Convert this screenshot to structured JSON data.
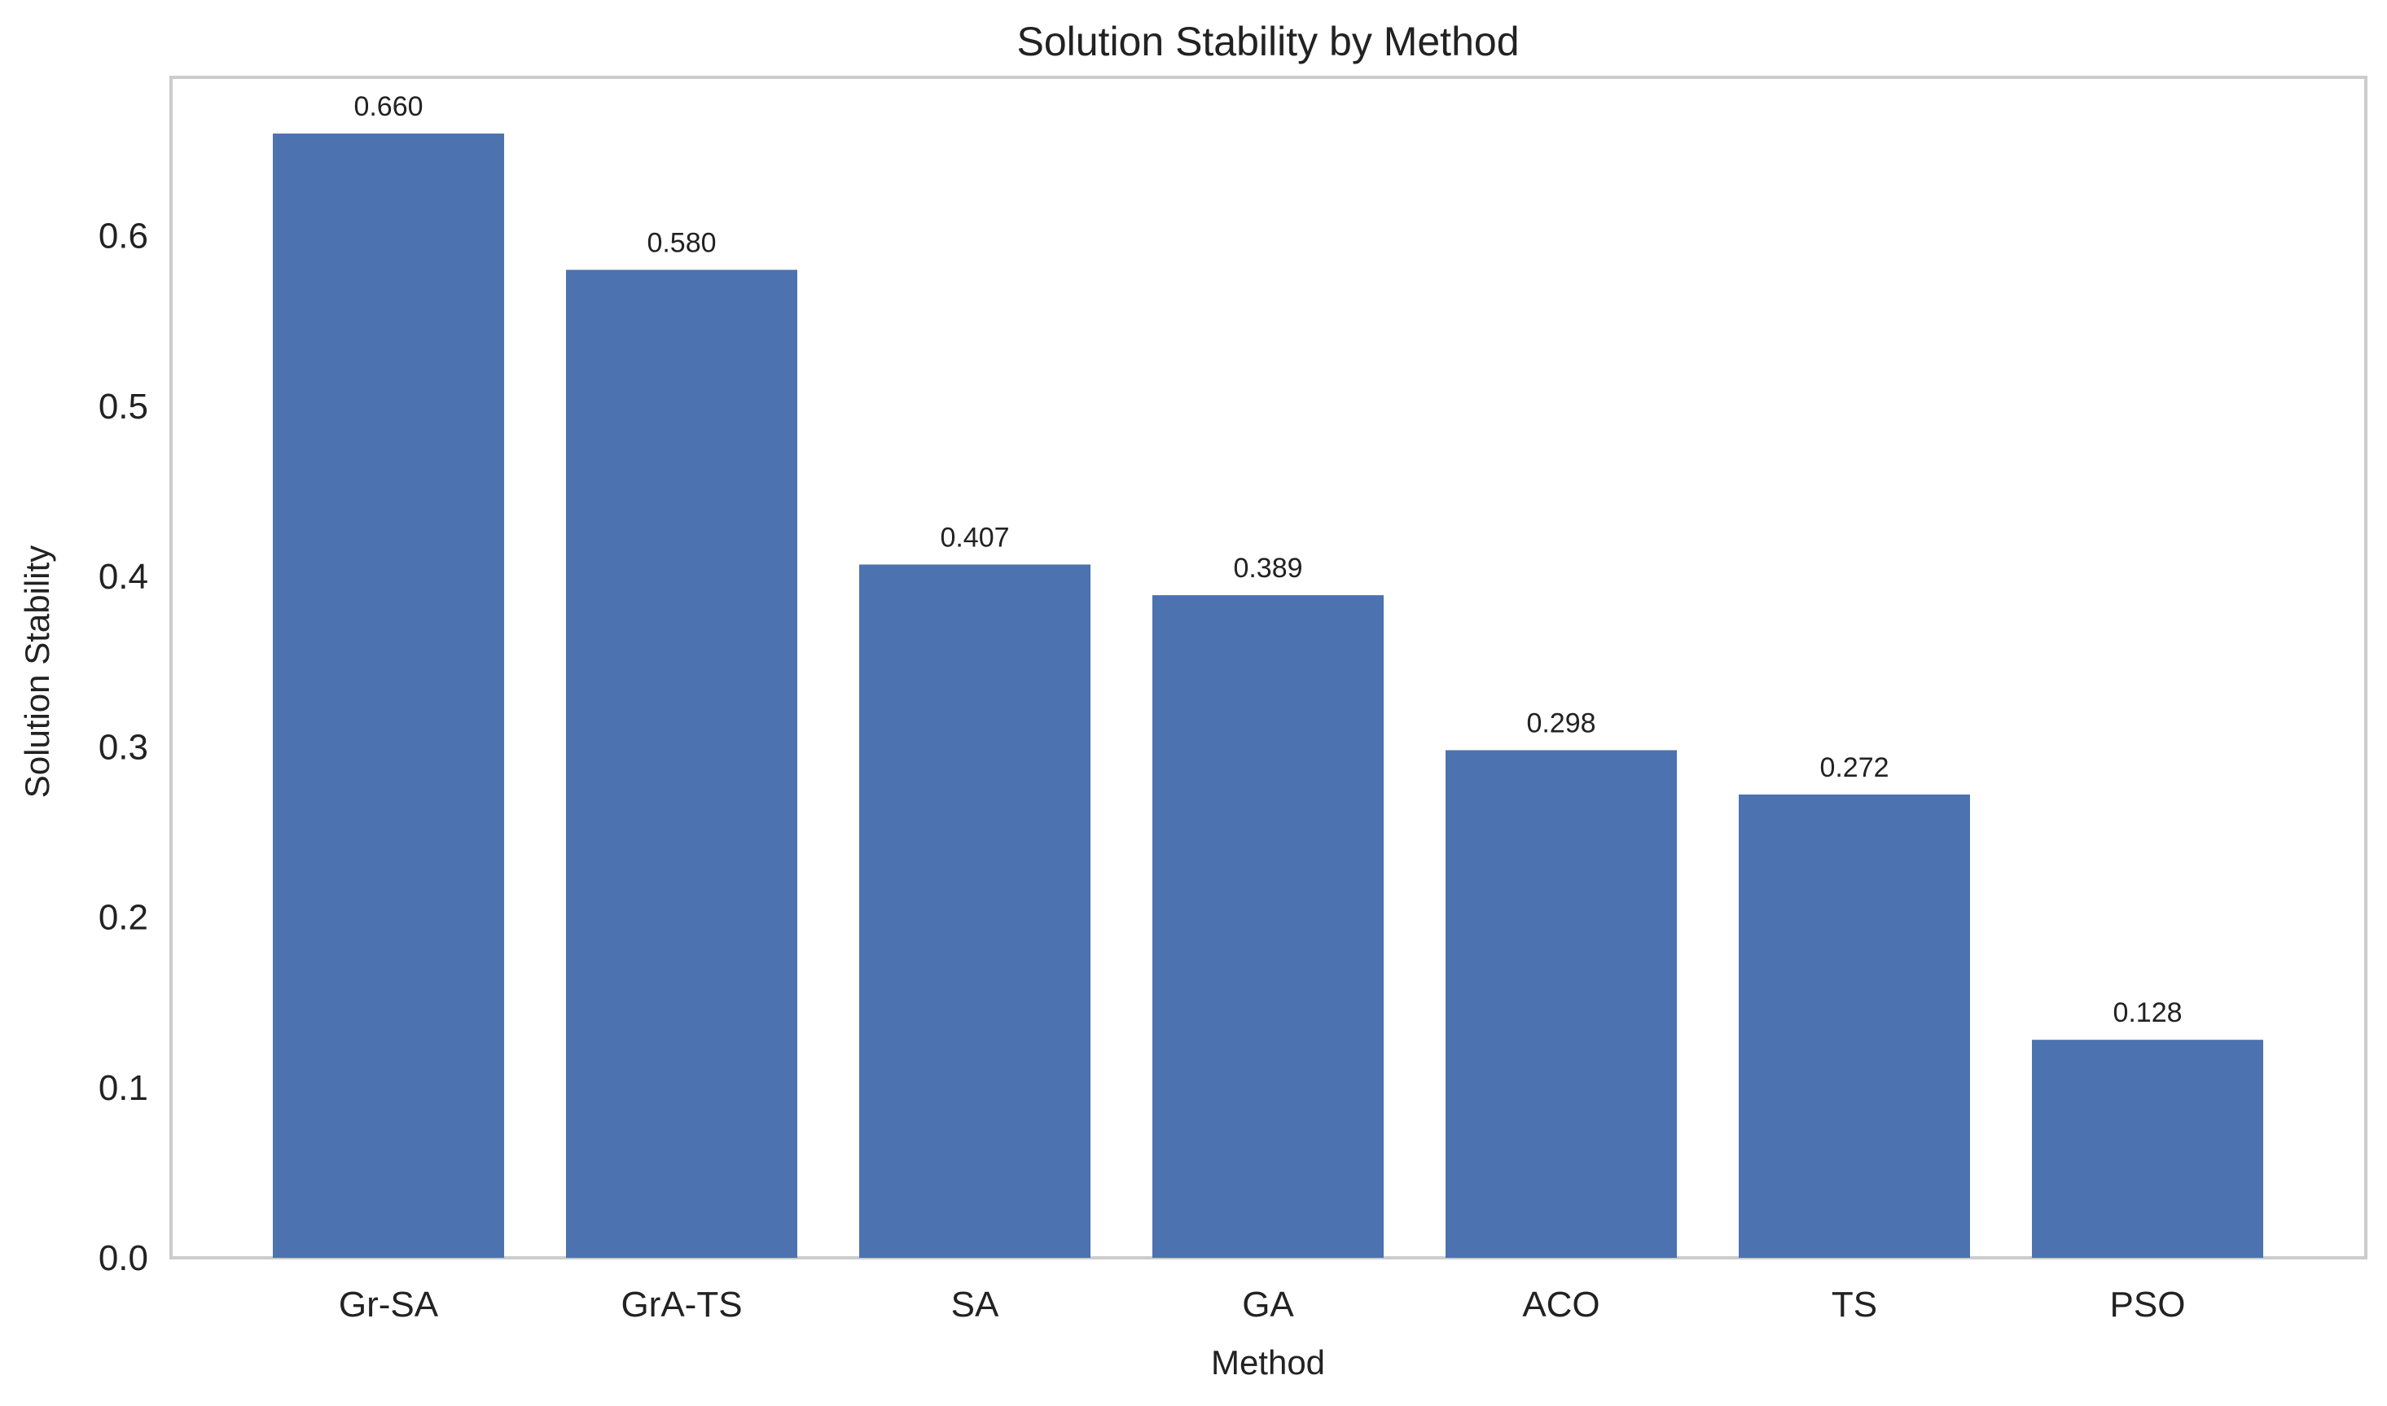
{
  "chart_data": {
    "type": "bar",
    "title": "Solution Stability by Method",
    "xlabel": "Method",
    "ylabel": "Solution Stability",
    "categories": [
      "Gr-SA",
      "GrA-TS",
      "SA",
      "GA",
      "ACO",
      "TS",
      "PSO"
    ],
    "values": [
      0.66,
      0.58,
      0.407,
      0.389,
      0.298,
      0.272,
      0.128
    ],
    "value_labels": [
      "0.660",
      "0.580",
      "0.407",
      "0.389",
      "0.298",
      "0.272",
      "0.128"
    ],
    "yticks": [
      0.0,
      0.1,
      0.2,
      0.3,
      0.4,
      0.5,
      0.6
    ],
    "ytick_labels": [
      "0.0",
      "0.1",
      "0.2",
      "0.3",
      "0.4",
      "0.5",
      "0.6"
    ],
    "ylim": [
      0,
      0.693
    ],
    "grid": false,
    "bar_color": "#4c72b0",
    "frame_color": "#cccccc"
  }
}
